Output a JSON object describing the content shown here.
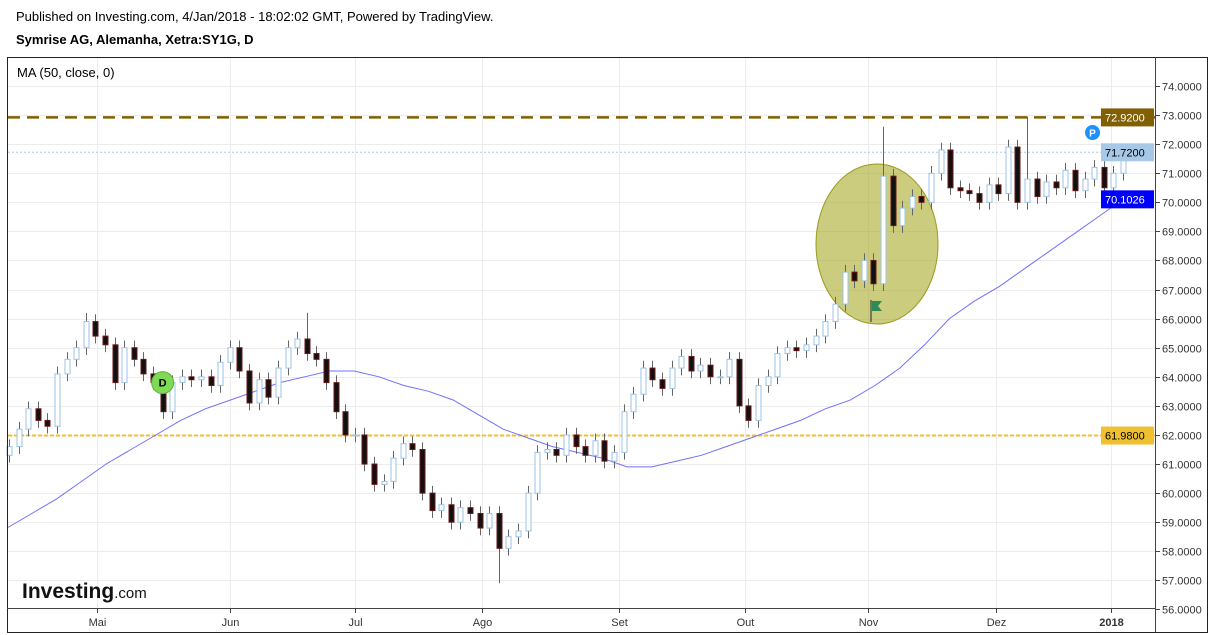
{
  "header": {
    "published": "Published on Investing.com, 4/Jan/2018 - 18:02:02 GMT, Powered by TradingView.",
    "symbol": "Symrise AG, Alemanha, Xetra:SY1G, D"
  },
  "legend": "MA (50, close, 0)",
  "logo": {
    "main": "Investing",
    "suffix": ".com"
  },
  "colors": {
    "up_border": "#9cc3e5",
    "down_fill": "#111111",
    "down_border": "#6b1515",
    "wick": "#666666",
    "ma": "#7070ff",
    "resistance": "#806000",
    "support": "#f0c030",
    "last": "#a8c8e8",
    "ma_label": "#0000ff",
    "ellipse": "#b8b84a",
    "flag": "#2e8b57",
    "d_marker": "#7ed957",
    "p_marker": "#1e90ff"
  },
  "chart_data": {
    "type": "candlestick",
    "title": "Symrise AG, Alemanha, Xetra:SY1G, D",
    "ylim": [
      56,
      75
    ],
    "y_ticks": [
      "74.0000",
      "73.0000",
      "72.0000",
      "71.0000",
      "70.0000",
      "69.0000",
      "68.0000",
      "67.0000",
      "66.0000",
      "65.0000",
      "64.0000",
      "63.0000",
      "62.0000",
      "61.0000",
      "60.0000",
      "59.0000",
      "58.0000",
      "57.0000",
      "56.0000"
    ],
    "x_ticks": [
      {
        "label": "Mai",
        "at": 9.2
      },
      {
        "label": "Jun",
        "at": 23.0
      },
      {
        "label": "Jul",
        "at": 36.0
      },
      {
        "label": "Ago",
        "at": 49.3
      },
      {
        "label": "Set",
        "at": 63.5
      },
      {
        "label": "Out",
        "at": 76.6
      },
      {
        "label": "Nov",
        "at": 89.4
      },
      {
        "label": "Dez",
        "at": 102.8
      },
      {
        "label": "2018",
        "at": 114.7
      }
    ],
    "first_open": 61.3,
    "closes": [
      61.6,
      62.2,
      62.9,
      62.5,
      62.3,
      64.1,
      64.6,
      65.0,
      65.9,
      65.4,
      65.1,
      63.8,
      65.0,
      64.6,
      64.1,
      63.8,
      62.8,
      63.8,
      64.0,
      63.9,
      64.0,
      63.7,
      64.5,
      65.0,
      64.2,
      63.1,
      63.9,
      63.3,
      64.3,
      65.0,
      65.3,
      64.8,
      64.6,
      63.8,
      62.8,
      62.0,
      62.0,
      61.0,
      60.3,
      60.4,
      61.2,
      61.7,
      61.5,
      60.0,
      59.4,
      59.6,
      59.0,
      59.5,
      59.3,
      58.8,
      59.3,
      58.1,
      58.5,
      58.7,
      60.0,
      61.4,
      61.5,
      61.3,
      62.0,
      61.6,
      61.3,
      61.8,
      61.1,
      61.4,
      62.8,
      63.4,
      64.3,
      63.9,
      63.6,
      64.3,
      64.7,
      64.2,
      64.4,
      64.0,
      64.0,
      64.6,
      63.0,
      62.5,
      63.7,
      64.0,
      64.8,
      65.0,
      64.9,
      65.1,
      65.4,
      65.9,
      66.5,
      67.6,
      67.3,
      68.0,
      67.2,
      70.9,
      69.2,
      69.8,
      70.2,
      70.0,
      71.0,
      71.8,
      70.5,
      70.4,
      70.3,
      70.0,
      70.6,
      70.3,
      71.9,
      70.0,
      70.8,
      70.2,
      70.7,
      70.5,
      71.1,
      70.4,
      70.8,
      71.2,
      70.5,
      71.0,
      71.72
    ],
    "wick_overrides": {
      "51": {
        "l": 56.9
      },
      "91": {
        "h": 72.6
      },
      "106": {
        "h": 72.95
      },
      "8": {
        "h": 66.2
      },
      "31": {
        "h": 66.2
      }
    },
    "ma_series": {
      "name": "MA (50, close, 0)",
      "values": [
        58.8,
        59.3,
        59.8,
        60.4,
        61.0,
        61.5,
        62.0,
        62.5,
        62.9,
        63.2,
        63.5,
        63.8,
        64.0,
        64.2,
        64.2,
        64.0,
        63.7,
        63.5,
        63.2,
        62.7,
        62.2,
        61.9,
        61.6,
        61.4,
        61.2,
        60.9,
        60.9,
        61.1,
        61.3,
        61.6,
        61.9,
        62.2,
        62.5,
        62.9,
        63.2,
        63.7,
        64.3,
        65.1,
        66.0,
        66.6,
        67.1,
        67.7,
        68.3,
        68.9,
        69.5,
        70.1
      ]
    },
    "price_lines": [
      {
        "name": "resistance",
        "value": 72.92,
        "label": "72.9200"
      },
      {
        "name": "support",
        "value": 61.98,
        "label": "61.9800"
      },
      {
        "name": "last-price",
        "value": 71.72,
        "label": "71.7200"
      },
      {
        "name": "ma-value",
        "value": 70.1026,
        "label": "70.1026"
      }
    ],
    "markers": [
      {
        "name": "dividend-marker",
        "label": "D",
        "at": 16,
        "price": 63.8
      },
      {
        "name": "p-marker",
        "label": "P",
        "at": 114.7,
        "price": 72.4
      }
    ]
  }
}
